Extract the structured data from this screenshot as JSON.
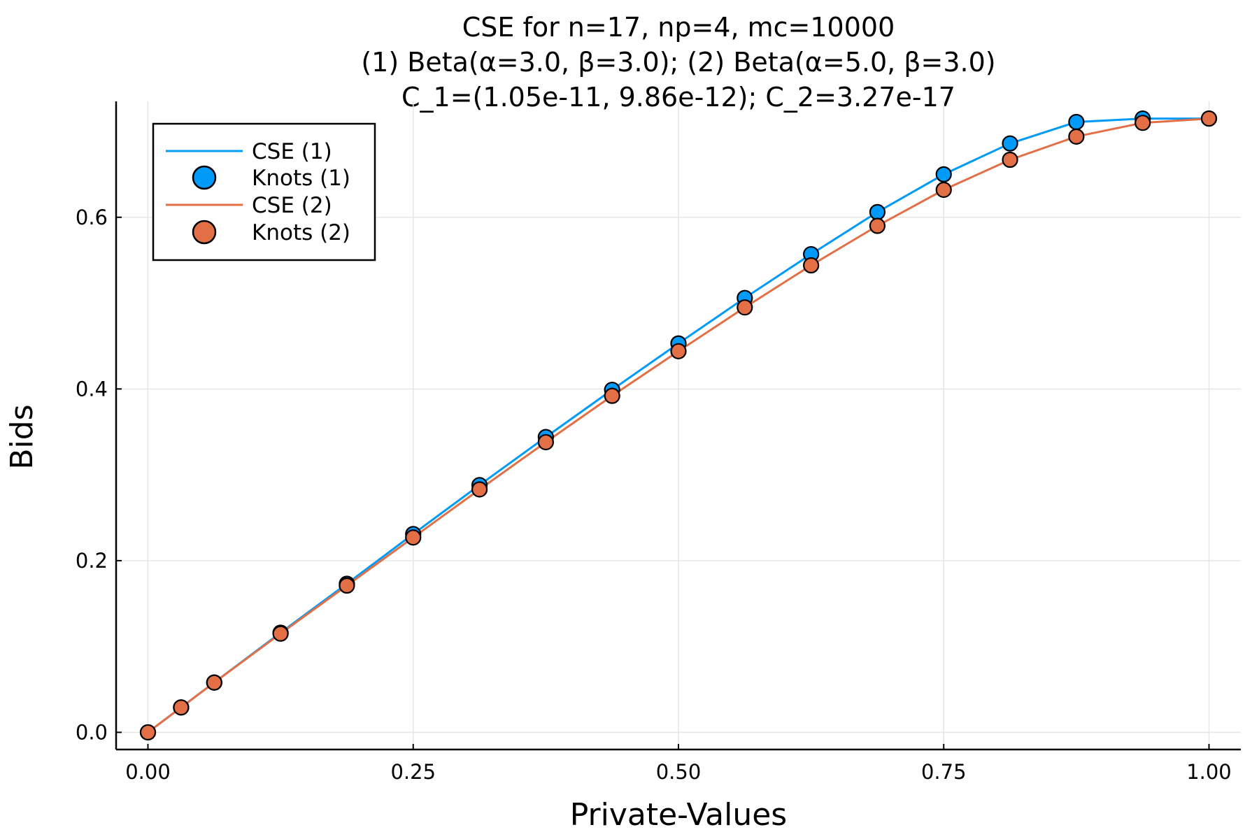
{
  "chart_data": {
    "type": "line",
    "title_lines": [
      "CSE for n=17, np=4, mc=10000",
      "(1) Beta(α=3.0, β=3.0); (2) Beta(α=5.0, β=3.0)",
      "C_1=(1.05e-11, 9.86e-12); C_2=3.27e-17"
    ],
    "xlabel": "Private-Values",
    "ylabel": "Bids",
    "xlim": [
      -0.03,
      1.03
    ],
    "ylim": [
      -0.02,
      0.735
    ],
    "xticks": [
      0.0,
      0.25,
      0.5,
      0.75,
      1.0
    ],
    "xtick_labels": [
      "0.00",
      "0.25",
      "0.50",
      "0.75",
      "1.00"
    ],
    "yticks": [
      0.0,
      0.2,
      0.4,
      0.6
    ],
    "ytick_labels": [
      "0.0",
      "0.2",
      "0.4",
      "0.6"
    ],
    "grid": true,
    "legend_position": "top-left",
    "x": [
      0.0,
      0.03125,
      0.0625,
      0.125,
      0.1875,
      0.25,
      0.3125,
      0.375,
      0.4375,
      0.5,
      0.5625,
      0.625,
      0.6875,
      0.75,
      0.8125,
      0.875,
      0.9375,
      1.0
    ],
    "series": [
      {
        "name": "CSE (1)",
        "knots_name": "Knots (1)",
        "color": "#009af9",
        "values": [
          0.0,
          0.029,
          0.058,
          0.116,
          0.173,
          0.231,
          0.288,
          0.344,
          0.399,
          0.453,
          0.506,
          0.557,
          0.606,
          0.65,
          0.686,
          0.711,
          0.715,
          0.715
        ]
      },
      {
        "name": "CSE (2)",
        "knots_name": "Knots (2)",
        "color": "#e26f46",
        "values": [
          0.0,
          0.029,
          0.058,
          0.115,
          0.171,
          0.227,
          0.283,
          0.338,
          0.392,
          0.444,
          0.495,
          0.544,
          0.59,
          0.632,
          0.667,
          0.694,
          0.71,
          0.715
        ]
      }
    ]
  }
}
